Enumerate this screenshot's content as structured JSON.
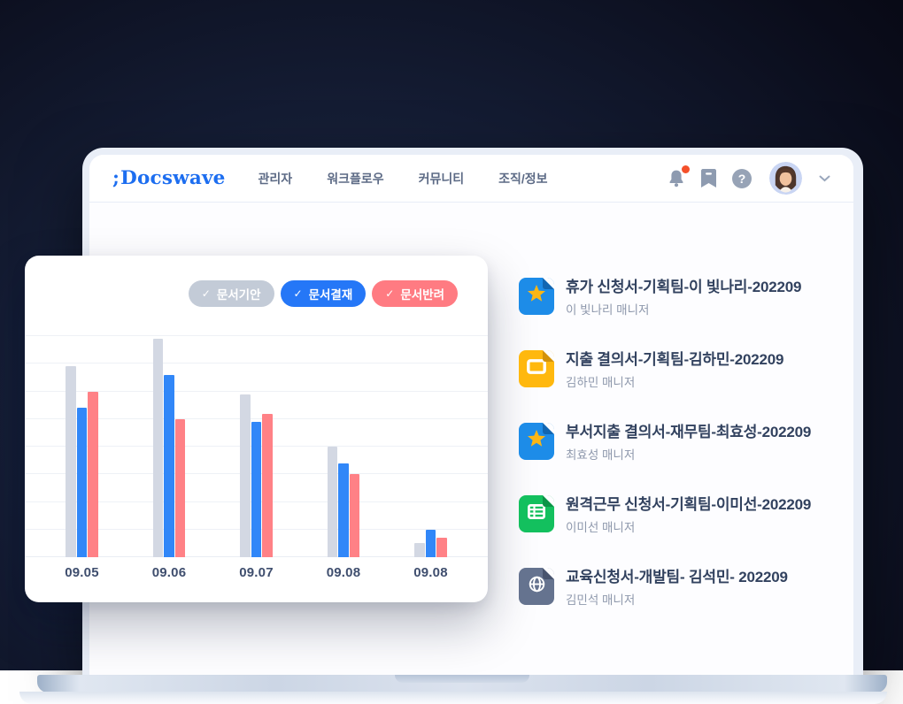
{
  "brand": {
    "logo_mark": ";",
    "logo_text": "Docswave",
    "logo_color": "#1d6ef0"
  },
  "nav": {
    "items": [
      {
        "label": "관리자"
      },
      {
        "label": "워크플로우"
      },
      {
        "label": "커뮤니티"
      },
      {
        "label": "조직/정보"
      }
    ]
  },
  "header_icons": {
    "bell": {
      "name": "notification-bell-icon",
      "has_unread_dot": true,
      "dot_color": "#f4502a",
      "color": "#8e9bb0"
    },
    "bookmark": {
      "name": "bookmark-icon",
      "color": "#8e9bb0"
    },
    "help": {
      "name": "help-icon",
      "glyph": "?",
      "color": "#97a3b6"
    },
    "avatar": {
      "name": "user-avatar",
      "bg_color": "#c9d5f3"
    },
    "chevron": {
      "name": "chevron-down-icon",
      "color": "#9aa7bc"
    }
  },
  "chart": {
    "legend": [
      {
        "label": "문서기안",
        "check": "✓",
        "color": "#c3cbd7"
      },
      {
        "label": "문서결재",
        "check": "✓",
        "color": "#2577f7"
      },
      {
        "label": "문서반려",
        "check": "✓",
        "color": "#ff7b82"
      }
    ]
  },
  "chart_data": {
    "type": "bar",
    "title": "",
    "xlabel": "",
    "ylabel": "",
    "categories": [
      "09.05",
      "09.06",
      "09.07",
      "09.08",
      "09.08"
    ],
    "series": [
      {
        "name": "문서기안",
        "color": "#d3d8e3",
        "values": [
          69,
          79,
          59,
          40,
          5
        ]
      },
      {
        "name": "문서결재",
        "color": "#3187f8",
        "values": [
          54,
          66,
          49,
          34,
          10
        ]
      },
      {
        "name": "문서반려",
        "color": "#ff8186",
        "values": [
          60,
          50,
          52,
          30,
          7
        ]
      }
    ],
    "ylim": [
      0,
      80
    ],
    "gridline_step": 10,
    "grid": true,
    "legend_position": "top-right"
  },
  "documents": {
    "items": [
      {
        "title": "휴가 신청서-기획팀-이 빛나리-202209",
        "subtitle": "이 빛나리 매니저",
        "icon": "starred-doc-icon",
        "icon_color": "#1d8ce8",
        "fold_color": "#1266b2",
        "glyph_color": "#fcb614"
      },
      {
        "title": "지출 결의서-기획팀-김하민-202209",
        "subtitle": "김하민 매니저",
        "icon": "slides-doc-icon",
        "icon_color": "#ffb80e",
        "fold_color": "#d3920a",
        "glyph_color": "#ffffff"
      },
      {
        "title": "부서지출 결의서-재무팀-최효성-202209",
        "subtitle": "최효성 매니저",
        "icon": "starred-doc-icon",
        "icon_color": "#1d8ce8",
        "fold_color": "#1266b2",
        "glyph_color": "#fcb614"
      },
      {
        "title": "원격근무 신청서-기획팀-이미선-202209",
        "subtitle": "이미선 매니저",
        "icon": "sheet-doc-icon",
        "icon_color": "#13c05e",
        "fold_color": "#0b9447",
        "glyph_color": "#ffffff"
      },
      {
        "title": "교육신청서-개발팀- 김석민- 202209",
        "subtitle": "김민석 매니저",
        "icon": "globe-doc-icon",
        "icon_color": "#65738f",
        "fold_color": "#48546e",
        "glyph_color": "#ffffff"
      }
    ]
  }
}
